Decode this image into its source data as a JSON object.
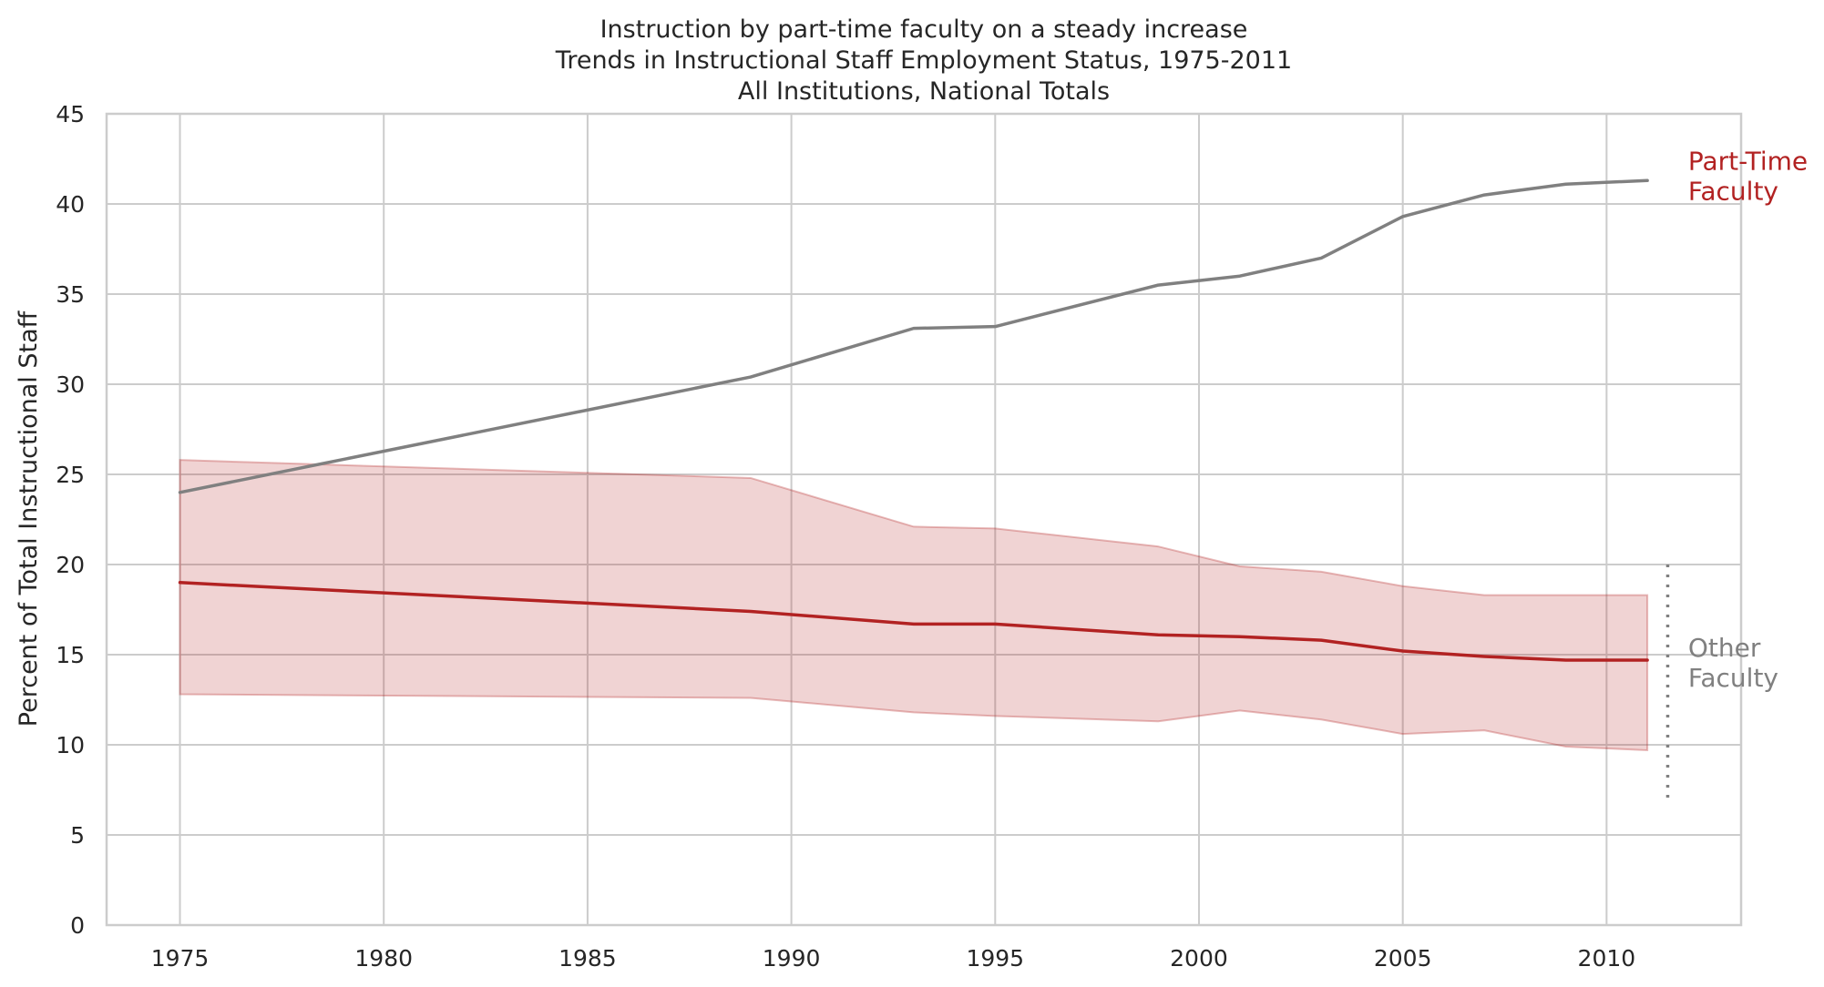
{
  "chart_data": {
    "type": "line",
    "title_lines": [
      "Instruction by part-time faculty on a steady increase",
      "Trends in Instructional Staff Employment Status, 1975-2011",
      "All Institutions, National Totals"
    ],
    "xlabel": "",
    "ylabel": "Percent of Total Instructional Staff",
    "xlim": [
      1973.2,
      2013.3
    ],
    "ylim": [
      0,
      45
    ],
    "x_ticks": [
      1975,
      1980,
      1985,
      1990,
      1995,
      2000,
      2005,
      2010
    ],
    "y_ticks": [
      0,
      5,
      10,
      15,
      20,
      25,
      30,
      35,
      40,
      45
    ],
    "grid": true,
    "x": [
      1975,
      1989,
      1993,
      1995,
      1999,
      2001,
      2003,
      2005,
      2007,
      2009,
      2011
    ],
    "series": [
      {
        "name": "Part-Time Faculty",
        "color": "#808080",
        "values": [
          24.0,
          30.4,
          33.1,
          33.2,
          35.5,
          36.0,
          37.0,
          39.3,
          40.5,
          41.1,
          41.3
        ]
      },
      {
        "name": "Other Faculty",
        "color": "#b22222",
        "values": [
          19.0,
          17.4,
          16.7,
          16.7,
          16.1,
          16.0,
          15.8,
          15.2,
          14.9,
          14.7,
          14.7
        ],
        "band_upper": [
          25.8,
          24.8,
          22.1,
          22.0,
          21.0,
          19.9,
          19.6,
          18.8,
          18.3,
          18.3,
          18.3
        ],
        "band_lower": [
          12.8,
          12.6,
          11.8,
          11.6,
          11.3,
          11.9,
          11.4,
          10.6,
          10.8,
          9.9,
          9.7
        ],
        "band_color": "#b22222"
      }
    ],
    "annotations": [
      {
        "text_lines": [
          "Part-Time",
          "Faculty"
        ],
        "color": "#b22222",
        "x": 2012,
        "y": 41.9
      },
      {
        "text_lines": [
          "Other",
          "Faculty"
        ],
        "color": "#808080",
        "x": 2012,
        "y": 14.9
      }
    ],
    "bracket": {
      "x": 2011.5,
      "y_range": [
        7,
        20
      ],
      "color": "#808080",
      "style": "dotted"
    }
  }
}
